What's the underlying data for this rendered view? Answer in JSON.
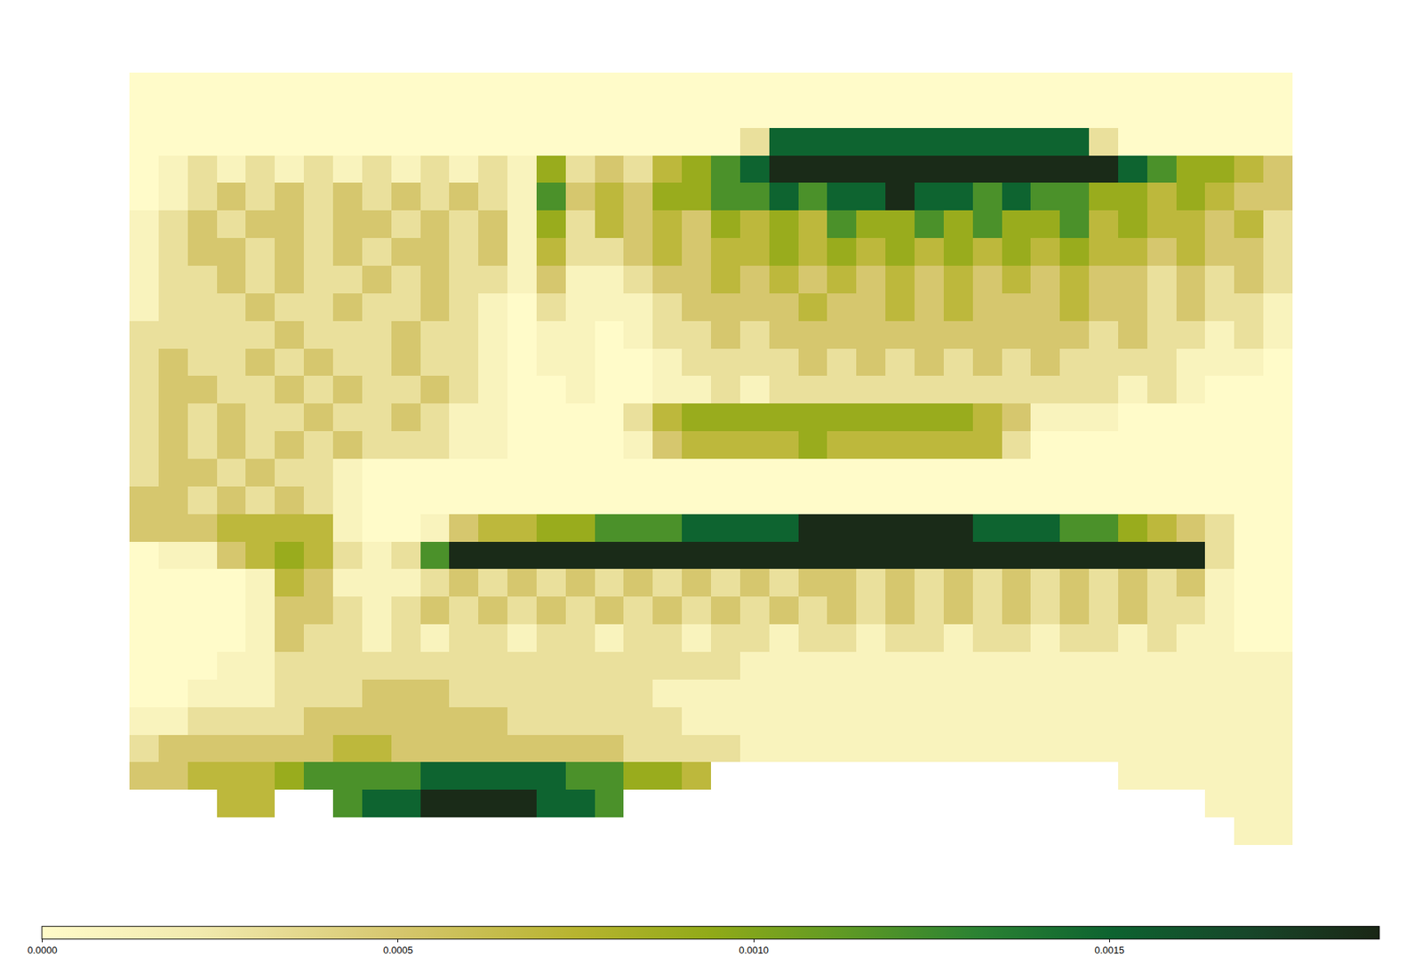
{
  "chart_data": {
    "type": "heatmap",
    "tick_labels": false,
    "zlim": [
      0,
      0.00188
    ],
    "zticks": [
      {
        "value": 0,
        "label": "0.0000"
      },
      {
        "value": 0.0005,
        "label": "0.0005"
      },
      {
        "value": 0.001,
        "label": "0.0010"
      },
      {
        "value": 0.0015,
        "label": "0.0015"
      }
    ],
    "z": [
      [
        0,
        0,
        0,
        0,
        0,
        0,
        0,
        0,
        0,
        0,
        0,
        0,
        0,
        0,
        0,
        0,
        0,
        0,
        0,
        0,
        0,
        0,
        0,
        0,
        0,
        0,
        0,
        0,
        0,
        0,
        0,
        0,
        0,
        0,
        0,
        0,
        0,
        0,
        0,
        0
      ],
      [
        0,
        0,
        0,
        0,
        0,
        0,
        0,
        0,
        0,
        0,
        0,
        0,
        0,
        0,
        0,
        0,
        0,
        0,
        0,
        0,
        0,
        0,
        0,
        0,
        0,
        0,
        0,
        0,
        0,
        0,
        0,
        0,
        0,
        0,
        0,
        0,
        0,
        0,
        0,
        0
      ],
      [
        0,
        0,
        0,
        0,
        0,
        0,
        0,
        0,
        0,
        0,
        0,
        0,
        0,
        0,
        0,
        0,
        0,
        0,
        0,
        0,
        0,
        0.0003,
        0.0015,
        0.0015,
        0.0015,
        0.0015,
        0.0015,
        0.0015,
        0.0015,
        0.0015,
        0.0015,
        0.0015,
        0.0015,
        0.0003,
        0,
        0,
        0,
        0,
        0,
        0
      ],
      [
        0,
        0.0001,
        0.0003,
        0.0001,
        0.0003,
        0.0001,
        0.0003,
        0.0001,
        0.0003,
        0.0001,
        0.0003,
        0.0001,
        0.0003,
        0.0001,
        0.0009,
        0.0003,
        0.0005,
        0.0003,
        0.0007,
        0.0009,
        0.0012,
        0.0015,
        0.00185,
        0.00185,
        0.00185,
        0.00185,
        0.00185,
        0.00185,
        0.00185,
        0.00185,
        0.00185,
        0.00185,
        0.00185,
        0.00185,
        0.0015,
        0.0012,
        0.0009,
        0.0009,
        0.0007,
        0.0005
      ],
      [
        0,
        0.0001,
        0.0003,
        0.0005,
        0.0003,
        0.0005,
        0.0003,
        0.0005,
        0.0003,
        0.0005,
        0.0003,
        0.0005,
        0.0003,
        0.0001,
        0.0012,
        0.0005,
        0.0007,
        0.0005,
        0.0009,
        0.0009,
        0.0012,
        0.0012,
        0.0015,
        0.0012,
        0.0015,
        0.0015,
        0.00185,
        0.0015,
        0.0015,
        0.0012,
        0.0015,
        0.0012,
        0.0012,
        0.0009,
        0.0009,
        0.0007,
        0.0009,
        0.0007,
        0.0005,
        0.0005
      ],
      [
        0.0001,
        0.0003,
        0.0005,
        0.0003,
        0.0005,
        0.0005,
        0.0003,
        0.0005,
        0.0005,
        0.0003,
        0.0005,
        0.0003,
        0.0005,
        0.0001,
        0.0009,
        0.0003,
        0.0007,
        0.0005,
        0.0007,
        0.0005,
        0.0009,
        0.0007,
        0.0009,
        0.0007,
        0.0012,
        0.0009,
        0.0009,
        0.0012,
        0.0009,
        0.0012,
        0.0009,
        0.0009,
        0.0012,
        0.0007,
        0.0009,
        0.0007,
        0.0007,
        0.0005,
        0.0007,
        0.0003
      ],
      [
        0.0001,
        0.0003,
        0.0005,
        0.0005,
        0.0003,
        0.0005,
        0.0003,
        0.0005,
        0.0003,
        0.0005,
        0.0005,
        0.0003,
        0.0005,
        0.0001,
        0.0007,
        0.0003,
        0.0003,
        0.0005,
        0.0007,
        0.0005,
        0.0007,
        0.0007,
        0.0009,
        0.0007,
        0.0009,
        0.0007,
        0.0009,
        0.0007,
        0.0009,
        0.0007,
        0.0009,
        0.0007,
        0.0009,
        0.0007,
        0.0007,
        0.0005,
        0.0007,
        0.0005,
        0.0005,
        0.0003
      ],
      [
        0.0001,
        0.0003,
        0.0003,
        0.0005,
        0.0003,
        0.0005,
        0.0003,
        0.0003,
        0.0005,
        0.0003,
        0.0005,
        0.0003,
        0.0003,
        0.0001,
        0.0005,
        0.0001,
        0.0001,
        0.0003,
        0.0005,
        0.0005,
        0.0007,
        0.0005,
        0.0007,
        0.0005,
        0.0007,
        0.0005,
        0.0007,
        0.0005,
        0.0007,
        0.0005,
        0.0007,
        0.0005,
        0.0007,
        0.0005,
        0.0005,
        0.0003,
        0.0005,
        0.0003,
        0.0005,
        0.0003
      ],
      [
        0.0001,
        0.0003,
        0.0003,
        0.0003,
        0.0005,
        0.0003,
        0.0003,
        0.0005,
        0.0003,
        0.0003,
        0.0005,
        0.0003,
        0.0001,
        0,
        0.0003,
        0.0001,
        0.0001,
        0.0001,
        0.0003,
        0.0005,
        0.0005,
        0.0005,
        0.0005,
        0.0007,
        0.0005,
        0.0005,
        0.0007,
        0.0005,
        0.0007,
        0.0005,
        0.0005,
        0.0005,
        0.0007,
        0.0005,
        0.0005,
        0.0003,
        0.0005,
        0.0003,
        0.0003,
        0.0001
      ],
      [
        0.0003,
        0.0003,
        0.0003,
        0.0003,
        0.0003,
        0.0005,
        0.0003,
        0.0003,
        0.0003,
        0.0005,
        0.0003,
        0.0003,
        0.0001,
        0,
        0.0001,
        0.0001,
        0,
        0.0001,
        0.0003,
        0.0003,
        0.0005,
        0.0003,
        0.0005,
        0.0005,
        0.0005,
        0.0005,
        0.0005,
        0.0005,
        0.0005,
        0.0005,
        0.0005,
        0.0005,
        0.0005,
        0.0003,
        0.0005,
        0.0003,
        0.0003,
        0.0001,
        0.0003,
        0.0001
      ],
      [
        0.0003,
        0.0005,
        0.0003,
        0.0003,
        0.0005,
        0.0003,
        0.0005,
        0.0003,
        0.0003,
        0.0005,
        0.0003,
        0.0003,
        0.0001,
        0,
        0.0001,
        0.0001,
        0,
        0,
        0.0001,
        0.0003,
        0.0003,
        0.0003,
        0.0003,
        0.0005,
        0.0003,
        0.0005,
        0.0003,
        0.0005,
        0.0003,
        0.0005,
        0.0003,
        0.0005,
        0.0003,
        0.0003,
        0.0003,
        0.0003,
        0.0001,
        0.0001,
        0.0001,
        0
      ],
      [
        0.0003,
        0.0005,
        0.0005,
        0.0003,
        0.0003,
        0.0005,
        0.0003,
        0.0005,
        0.0003,
        0.0003,
        0.0005,
        0.0003,
        0.0001,
        0,
        0,
        0.0001,
        0,
        0,
        0.0001,
        0.0001,
        0.0003,
        0.0001,
        0.0003,
        0.0003,
        0.0003,
        0.0003,
        0.0003,
        0.0003,
        0.0003,
        0.0003,
        0.0003,
        0.0003,
        0.0003,
        0.0003,
        0.0001,
        0.0003,
        0.0001,
        0,
        0,
        0
      ],
      [
        0.0003,
        0.0005,
        0.0003,
        0.0005,
        0.0003,
        0.0003,
        0.0005,
        0.0003,
        0.0003,
        0.0005,
        0.0003,
        0.0001,
        0.0001,
        0,
        0,
        0,
        0,
        0.0003,
        0.0007,
        0.0009,
        0.0009,
        0.0009,
        0.0009,
        0.0009,
        0.0009,
        0.0009,
        0.0009,
        0.0009,
        0.0009,
        0.0007,
        0.0005,
        0.0001,
        0.0001,
        0.0001,
        0,
        0,
        0,
        0,
        0,
        0
      ],
      [
        0.0003,
        0.0005,
        0.0003,
        0.0005,
        0.0003,
        0.0005,
        0.0003,
        0.0005,
        0.0003,
        0.0003,
        0.0003,
        0.0001,
        0.0001,
        0,
        0,
        0,
        0,
        0.0001,
        0.0005,
        0.0007,
        0.0007,
        0.0007,
        0.0007,
        0.0009,
        0.0007,
        0.0007,
        0.0007,
        0.0007,
        0.0007,
        0.0007,
        0.0003,
        0,
        0,
        0,
        0,
        0,
        0,
        0,
        0,
        0
      ],
      [
        0.0003,
        0.0005,
        0.0005,
        0.0003,
        0.0005,
        0.0003,
        0.0003,
        0.0001,
        0,
        0,
        0,
        0,
        0,
        0,
        0,
        0,
        0,
        0,
        0,
        0,
        0,
        0,
        0,
        0,
        0,
        0,
        0,
        0,
        0,
        0,
        0,
        0,
        0,
        0,
        0,
        0,
        0,
        0,
        0,
        0
      ],
      [
        0.0005,
        0.0005,
        0.0003,
        0.0005,
        0.0003,
        0.0005,
        0.0003,
        0.0001,
        0,
        0,
        0,
        0,
        0,
        0,
        0,
        0,
        0,
        0,
        0,
        0,
        0,
        0,
        0,
        0,
        0,
        0,
        0,
        0,
        0,
        0,
        0,
        0,
        0,
        0,
        0,
        0,
        0,
        0,
        0,
        0
      ],
      [
        0.0005,
        0.0005,
        0.0005,
        0.0007,
        0.0007,
        0.0007,
        0.0007,
        0.0001,
        0,
        0,
        0.0001,
        0.0005,
        0.0007,
        0.0007,
        0.0009,
        0.0009,
        0.0012,
        0.0012,
        0.0012,
        0.0015,
        0.0015,
        0.0015,
        0.0015,
        0.00185,
        0.00185,
        0.00185,
        0.00185,
        0.00185,
        0.00185,
        0.0015,
        0.0015,
        0.0015,
        0.0012,
        0.0012,
        0.0009,
        0.0007,
        0.0005,
        0.0003,
        0,
        0
      ],
      [
        0,
        0.0001,
        0.0001,
        0.0005,
        0.0007,
        0.0009,
        0.0007,
        0.0003,
        0.0001,
        0.0003,
        0.0012,
        0.00185,
        0.00185,
        0.00185,
        0.00185,
        0.00185,
        0.00185,
        0.00185,
        0.00185,
        0.00185,
        0.00185,
        0.00185,
        0.00185,
        0.00185,
        0.00185,
        0.00185,
        0.00185,
        0.00185,
        0.00185,
        0.00185,
        0.00185,
        0.00185,
        0.00185,
        0.00185,
        0.00185,
        0.00185,
        0.00185,
        0.0003,
        0,
        0
      ],
      [
        0,
        0,
        0,
        0,
        0.0001,
        0.0007,
        0.0005,
        0.0001,
        0.0001,
        0.0001,
        0.0003,
        0.0005,
        0.0003,
        0.0005,
        0.0003,
        0.0005,
        0.0003,
        0.0005,
        0.0003,
        0.0005,
        0.0003,
        0.0005,
        0.0003,
        0.0005,
        0.0005,
        0.0003,
        0.0005,
        0.0003,
        0.0005,
        0.0003,
        0.0005,
        0.0003,
        0.0005,
        0.0003,
        0.0005,
        0.0003,
        0.0005,
        0.0001,
        0,
        0
      ],
      [
        0,
        0,
        0,
        0,
        0.0001,
        0.0005,
        0.0005,
        0.0003,
        0.0001,
        0.0003,
        0.0005,
        0.0003,
        0.0005,
        0.0003,
        0.0005,
        0.0003,
        0.0005,
        0.0003,
        0.0005,
        0.0003,
        0.0005,
        0.0003,
        0.0005,
        0.0003,
        0.0005,
        0.0003,
        0.0005,
        0.0003,
        0.0005,
        0.0003,
        0.0005,
        0.0003,
        0.0005,
        0.0003,
        0.0005,
        0.0003,
        0.0003,
        0.0001,
        0,
        0
      ],
      [
        0,
        0,
        0,
        0,
        0.0001,
        0.0005,
        0.0003,
        0.0003,
        0.0001,
        0.0003,
        0.0001,
        0.0003,
        0.0003,
        0.0001,
        0.0003,
        0.0003,
        0.0001,
        0.0003,
        0.0003,
        0.0001,
        0.0003,
        0.0003,
        0.0001,
        0.0003,
        0.0003,
        0.0001,
        0.0003,
        0.0003,
        0.0001,
        0.0003,
        0.0003,
        0.0001,
        0.0003,
        0.0003,
        0.0001,
        0.0003,
        0.0001,
        0.0001,
        0,
        0
      ],
      [
        0,
        0,
        0,
        0.0001,
        0.0001,
        0.0003,
        0.0003,
        0.0003,
        0.0003,
        0.0003,
        0.0003,
        0.0003,
        0.0003,
        0.0003,
        0.0003,
        0.0003,
        0.0003,
        0.0003,
        0.0003,
        0.0003,
        0.0003,
        0.0001,
        0.0001,
        0.0001,
        0.0001,
        0.0001,
        0.0001,
        0.0001,
        0.0001,
        0.0001,
        0.0001,
        0.0001,
        0.0001,
        0.0001,
        0.0001,
        0.0001,
        0.0001,
        0.0001,
        0.0001,
        0.0001
      ],
      [
        0,
        0,
        0.0001,
        0.0001,
        0.0001,
        0.0003,
        0.0003,
        0.0003,
        0.0005,
        0.0005,
        0.0005,
        0.0003,
        0.0003,
        0.0003,
        0.0003,
        0.0003,
        0.0003,
        0.0003,
        0.0001,
        0.0001,
        0.0001,
        0.0001,
        0.0001,
        0.0001,
        0.0001,
        0.0001,
        0.0001,
        0.0001,
        0.0001,
        0.0001,
        0.0001,
        0.0001,
        0.0001,
        0.0001,
        0.0001,
        0.0001,
        0.0001,
        0.0001,
        0.0001,
        0.0001
      ],
      [
        0.0001,
        0.0001,
        0.0003,
        0.0003,
        0.0003,
        0.0003,
        0.0005,
        0.0005,
        0.0005,
        0.0005,
        0.0005,
        0.0005,
        0.0005,
        0.0003,
        0.0003,
        0.0003,
        0.0003,
        0.0003,
        0.0003,
        0.0001,
        0.0001,
        0.0001,
        0.0001,
        0.0001,
        0.0001,
        0.0001,
        0.0001,
        0.0001,
        0.0001,
        0.0001,
        0.0001,
        0.0001,
        0.0001,
        0.0001,
        0.0001,
        0.0001,
        0.0001,
        0.0001,
        0.0001,
        0.0001
      ],
      [
        0.0003,
        0.0005,
        0.0005,
        0.0005,
        0.0005,
        0.0005,
        0.0005,
        0.0007,
        0.0007,
        0.0005,
        0.0005,
        0.0005,
        0.0005,
        0.0005,
        0.0005,
        0.0005,
        0.0005,
        0.0003,
        0.0003,
        0.0003,
        0.0003,
        0.0001,
        0.0001,
        0.0001,
        0.0001,
        0.0001,
        0.0001,
        0.0001,
        0.0001,
        0.0001,
        0.0001,
        0.0001,
        0.0001,
        0.0001,
        0.0001,
        0.0001,
        0.0001,
        0.0001,
        0.0001,
        0.0001
      ],
      [
        0.0005,
        0.0005,
        0.0007,
        0.0007,
        0.0007,
        0.0009,
        0.0012,
        0.0012,
        0.0012,
        0.0012,
        0.0015,
        0.0015,
        0.0015,
        0.0015,
        0.0015,
        0.0012,
        0.0012,
        0.0009,
        0.0009,
        0.0007,
        null,
        null,
        null,
        null,
        null,
        null,
        null,
        null,
        null,
        null,
        null,
        null,
        null,
        null,
        0.0001,
        0.0001,
        0.0001,
        0.0001,
        0.0001,
        0.0001
      ],
      [
        null,
        null,
        null,
        0.0007,
        0.0007,
        null,
        null,
        0.0012,
        0.0015,
        0.0015,
        0.00185,
        0.00185,
        0.00185,
        0.00185,
        0.0015,
        0.0015,
        0.0012,
        null,
        null,
        null,
        null,
        null,
        null,
        null,
        null,
        null,
        null,
        null,
        null,
        null,
        null,
        null,
        null,
        null,
        null,
        null,
        null,
        0.0001,
        0.0001,
        0.0001
      ],
      [
        null,
        null,
        null,
        null,
        null,
        null,
        null,
        null,
        null,
        null,
        null,
        null,
        null,
        null,
        null,
        null,
        null,
        null,
        null,
        null,
        null,
        null,
        null,
        null,
        null,
        null,
        null,
        null,
        null,
        null,
        null,
        null,
        null,
        null,
        null,
        null,
        null,
        null,
        0.0001,
        0.0001
      ]
    ]
  }
}
